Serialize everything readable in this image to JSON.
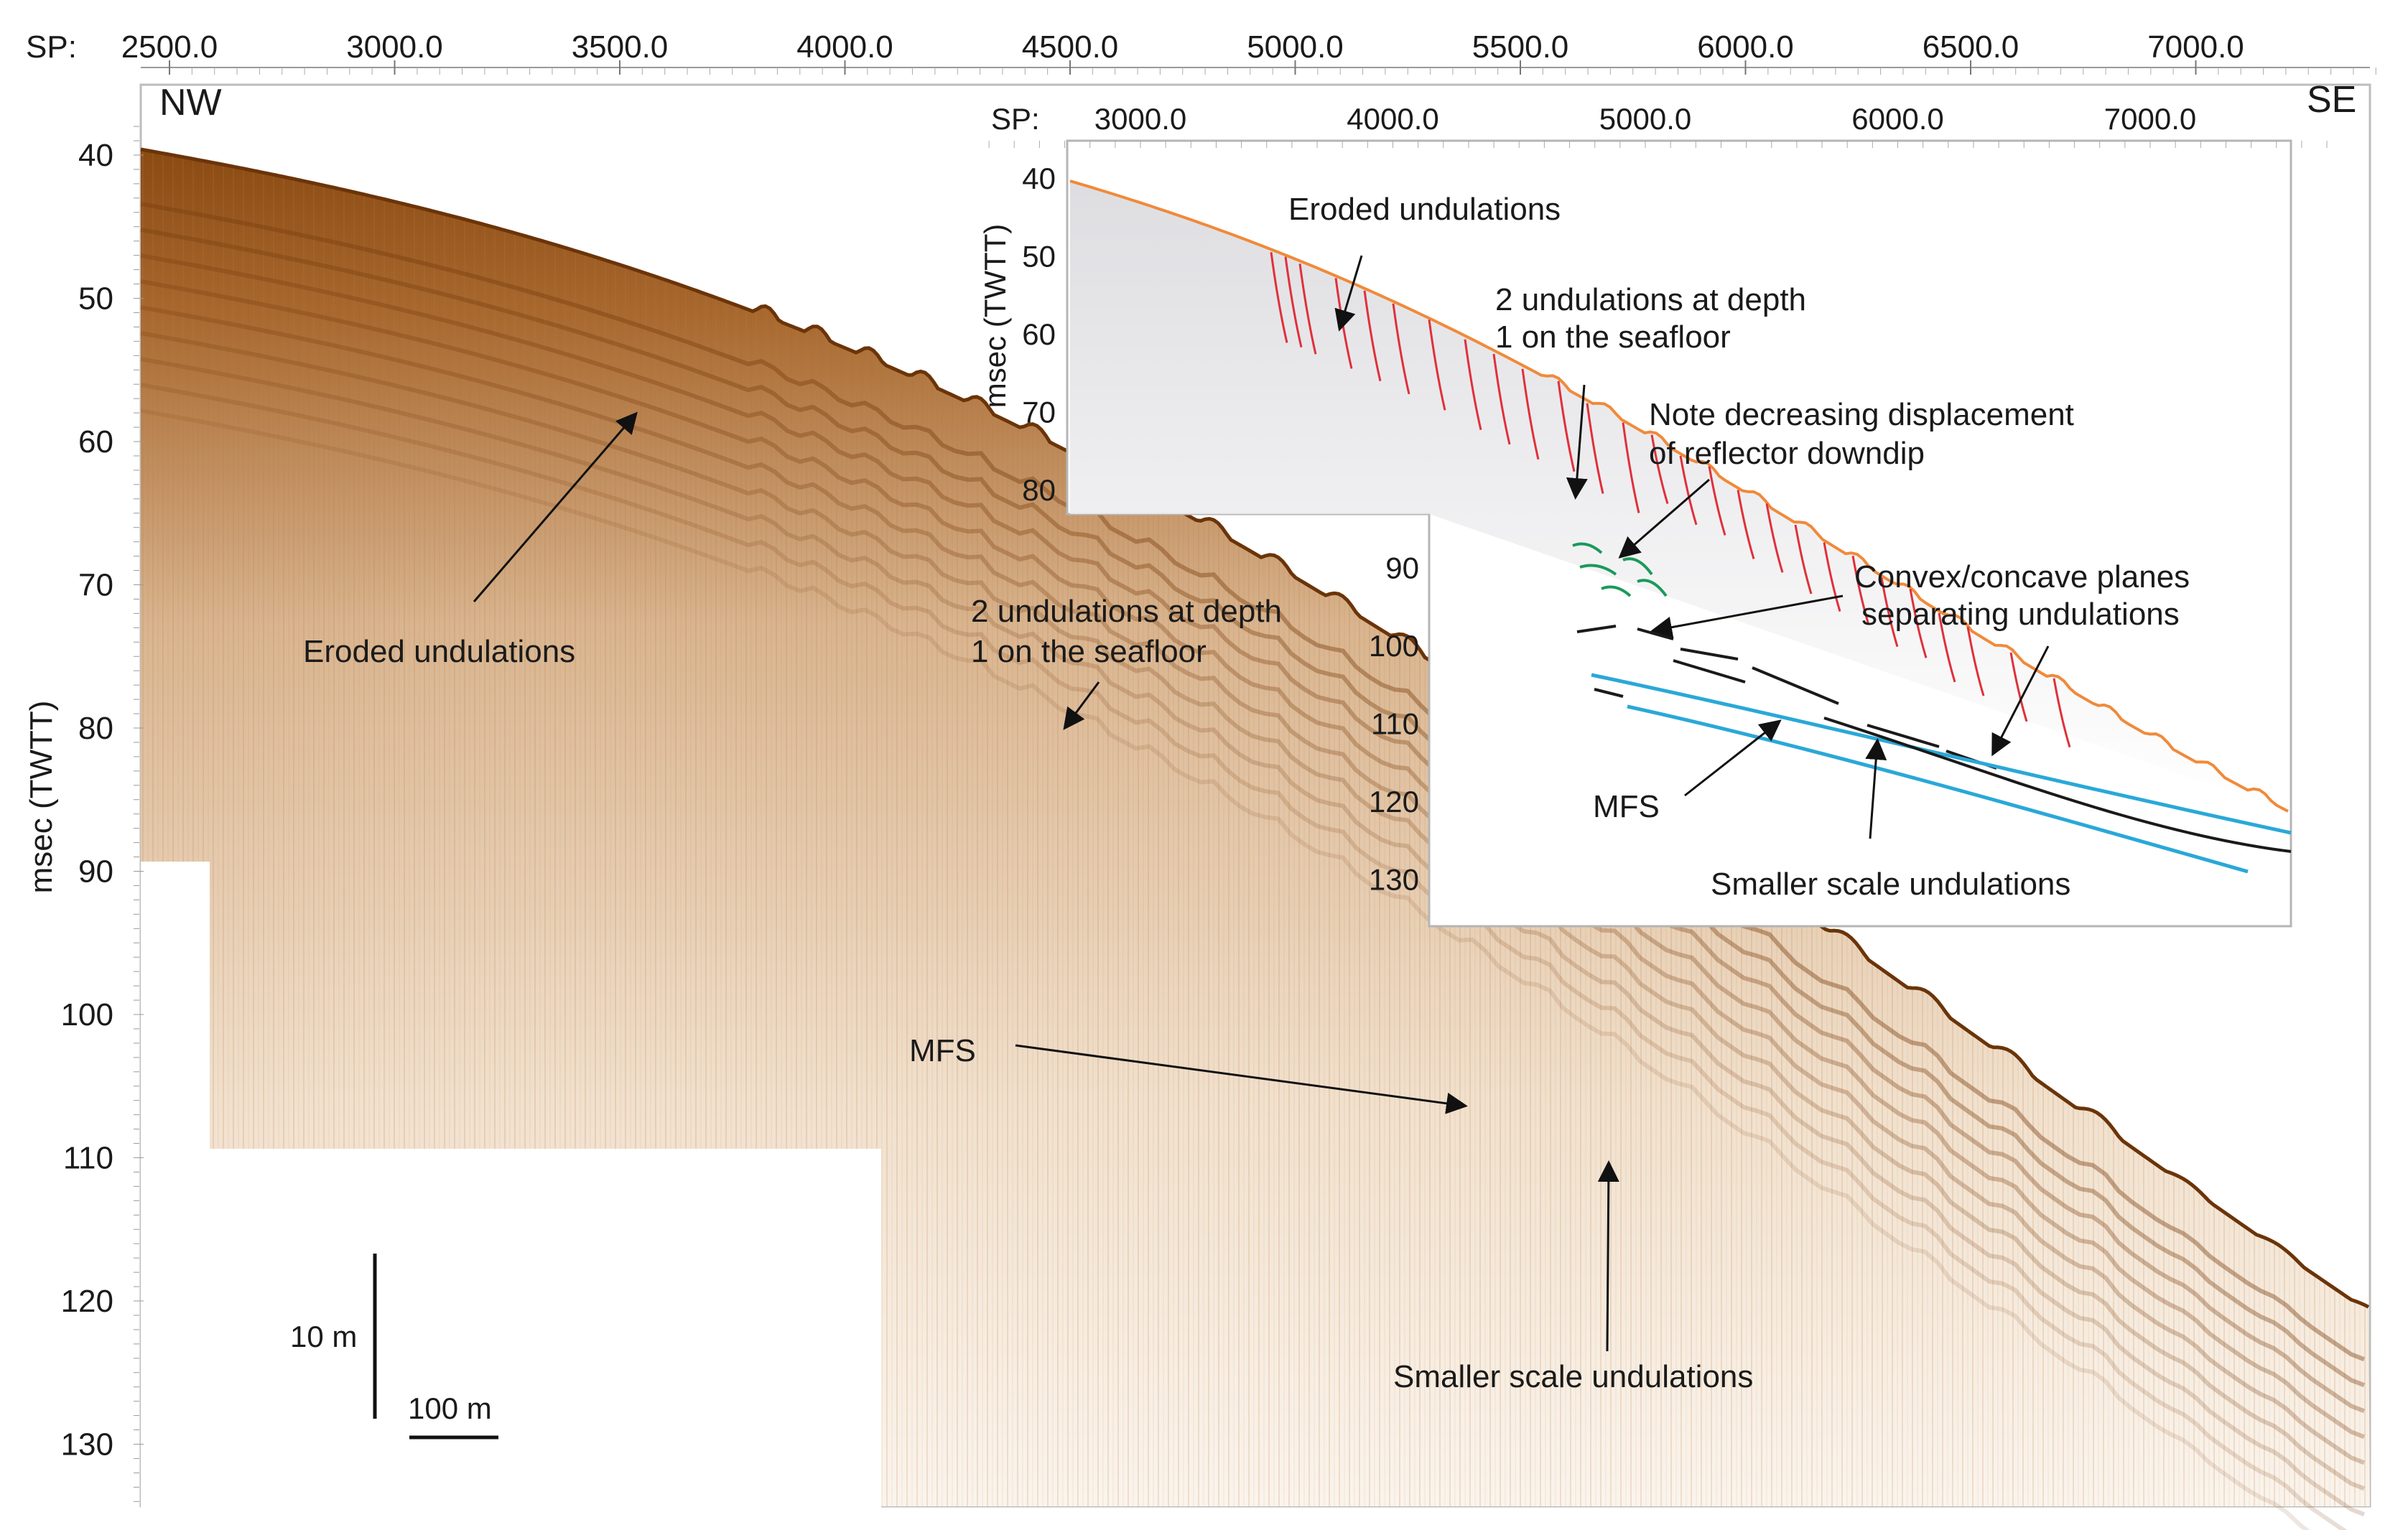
{
  "main": {
    "sp_prefix": "SP:",
    "sp_ticks": [
      2500,
      3000,
      3500,
      4000,
      4500,
      5000,
      5500,
      6000,
      6500,
      7000
    ],
    "sp_tick_labels": [
      "2500.0",
      "3000.0",
      "3500.0",
      "4000.0",
      "4500.0",
      "5000.0",
      "5500.0",
      "6000.0",
      "6500.0",
      "7000.0"
    ],
    "y_ticks": [
      40,
      50,
      60,
      70,
      80,
      90,
      100,
      110,
      120,
      130
    ],
    "y_tick_labels": [
      "40",
      "50",
      "60",
      "70",
      "80",
      "90",
      "100",
      "110",
      "120",
      "130"
    ],
    "y_axis_label": "msec (TWTT)",
    "left_label": "NW",
    "right_label": "SE",
    "scale_vertical": "10 m",
    "scale_horizontal": "100 m",
    "annotations": {
      "eroded": "Eroded undulations",
      "depth_line1": "2 undulations at depth",
      "depth_line2": "1 on the seafloor",
      "mfs": "MFS",
      "smaller": "Smaller scale undulations"
    }
  },
  "inset": {
    "sp_prefix": "SP:",
    "sp_ticks": [
      3000,
      4000,
      5000,
      6000,
      7000
    ],
    "sp_tick_labels": [
      "3000.0",
      "4000.0",
      "5000.0",
      "6000.0",
      "7000.0"
    ],
    "y_ticks": [
      40,
      50,
      60,
      70,
      80,
      90,
      100,
      110,
      120,
      130
    ],
    "y_tick_labels": [
      "40",
      "50",
      "60",
      "70",
      "80",
      "90",
      "100",
      "110",
      "120",
      "130"
    ],
    "y_axis_label": "msec (TWTT)",
    "annotations": {
      "eroded": "Eroded undulations",
      "depth_line1": "2 undulations at depth",
      "depth_line2": "1 on the seafloor",
      "note_line1": "Note decreasing displacement",
      "note_line2": "of reflector downdip",
      "convex_line1": "Convex/concave planes",
      "convex_line2": "separating undulations",
      "mfs": "MFS",
      "smaller": "Smaller scale undulations"
    }
  },
  "colors": {
    "seismic_brown": "#8a4a12",
    "seismic_light": "#e8c9a8",
    "seafloor_orange": "#f08a3a",
    "fault_red": "#e0303a",
    "reflector_green": "#1a9a5a",
    "mfs_blue": "#2aa8d8",
    "reflector_black": "#1a1a1a"
  }
}
